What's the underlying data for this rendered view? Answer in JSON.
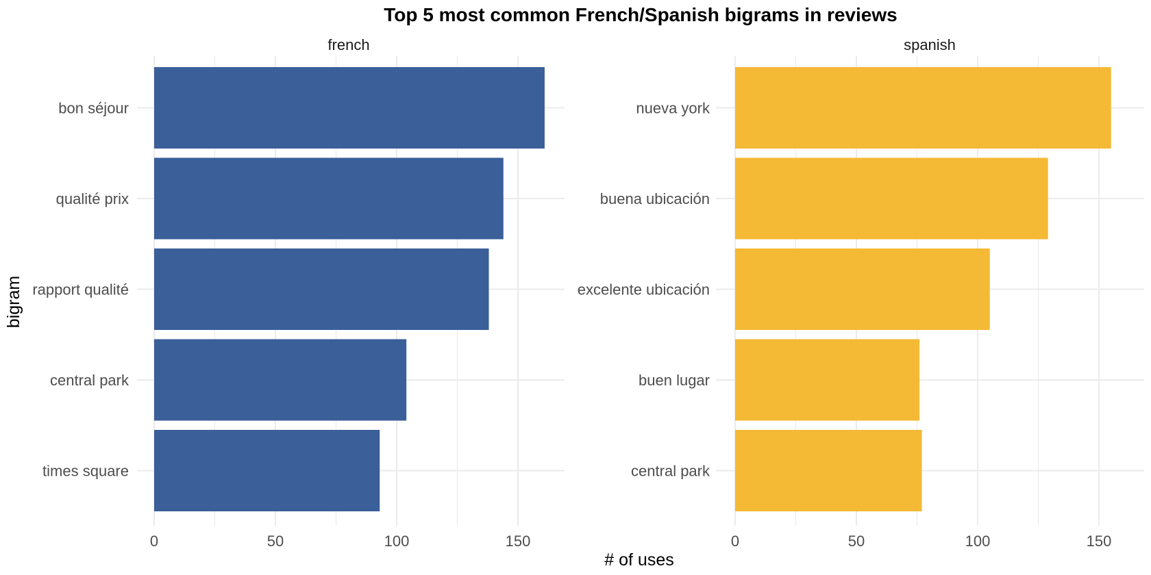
{
  "chart_data": {
    "type": "bar",
    "orientation": "horizontal",
    "title": "Top 5 most common French/Spanish bigrams in reviews",
    "xlabel": "# of uses",
    "ylabel": "bigram",
    "xlim": [
      0,
      170
    ],
    "x_ticks": [
      0,
      50,
      100,
      150
    ],
    "grid": true,
    "legend": "none",
    "panels": [
      {
        "name": "french",
        "color": "#3A5F99",
        "categories": [
          "bon séjour",
          "qualité prix",
          "rapport qualité",
          "central park",
          "times square"
        ],
        "values": [
          161,
          144,
          138,
          104,
          93
        ]
      },
      {
        "name": "spanish",
        "color": "#F4B935",
        "categories": [
          "nueva york",
          "buena ubicación",
          "excelente ubicación",
          "buen lugar",
          "central park"
        ],
        "values": [
          155,
          129,
          105,
          76,
          77
        ]
      }
    ]
  }
}
